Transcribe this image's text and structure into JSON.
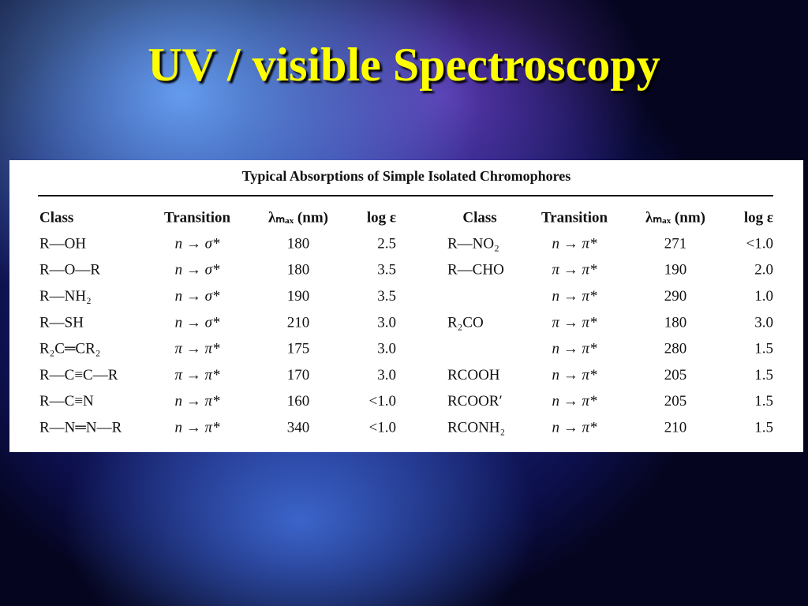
{
  "title": "UV / visible Spectroscopy",
  "table": {
    "caption": "Typical Absorptions of Simple Isolated Chromophores",
    "header": [
      "Class",
      "Transition",
      "λₘₐₓ (nm)",
      "log ε",
      "Class",
      "Transition",
      "λₘₐₓ (nm)",
      "log ε"
    ],
    "rows": [
      [
        "R—OH",
        "n → σ*",
        "180",
        "2.5",
        "R—NO₂",
        "n → π*",
        "271",
        "<1.0"
      ],
      [
        "R—O—R",
        "n → σ*",
        "180",
        "3.5",
        "R—CHO",
        "π → π*",
        "190",
        "2.0"
      ],
      [
        "R—NH₂",
        "n → σ*",
        "190",
        "3.5",
        null,
        "n → π*",
        "290",
        "1.0"
      ],
      [
        "R—SH",
        "n → σ*",
        "210",
        "3.0",
        "R₂CO",
        "π → π*",
        "180",
        "3.0"
      ],
      [
        "R₂C═CR₂",
        "π → π*",
        "175",
        "3.0",
        null,
        "n → π*",
        "280",
        "1.5"
      ],
      [
        "R—C≡C—R",
        "π → π*",
        "170",
        "3.0",
        "RCOOH",
        "n → π*",
        "205",
        "1.5"
      ],
      [
        "R—C≡N",
        "n → π*",
        "160",
        "<1.0",
        "RCOOR′",
        "n → π*",
        "205",
        "1.5"
      ],
      [
        "R—N═N—R",
        "n → π*",
        "340",
        "<1.0",
        "RCONH₂",
        "n → π*",
        "210",
        "1.5"
      ]
    ]
  }
}
